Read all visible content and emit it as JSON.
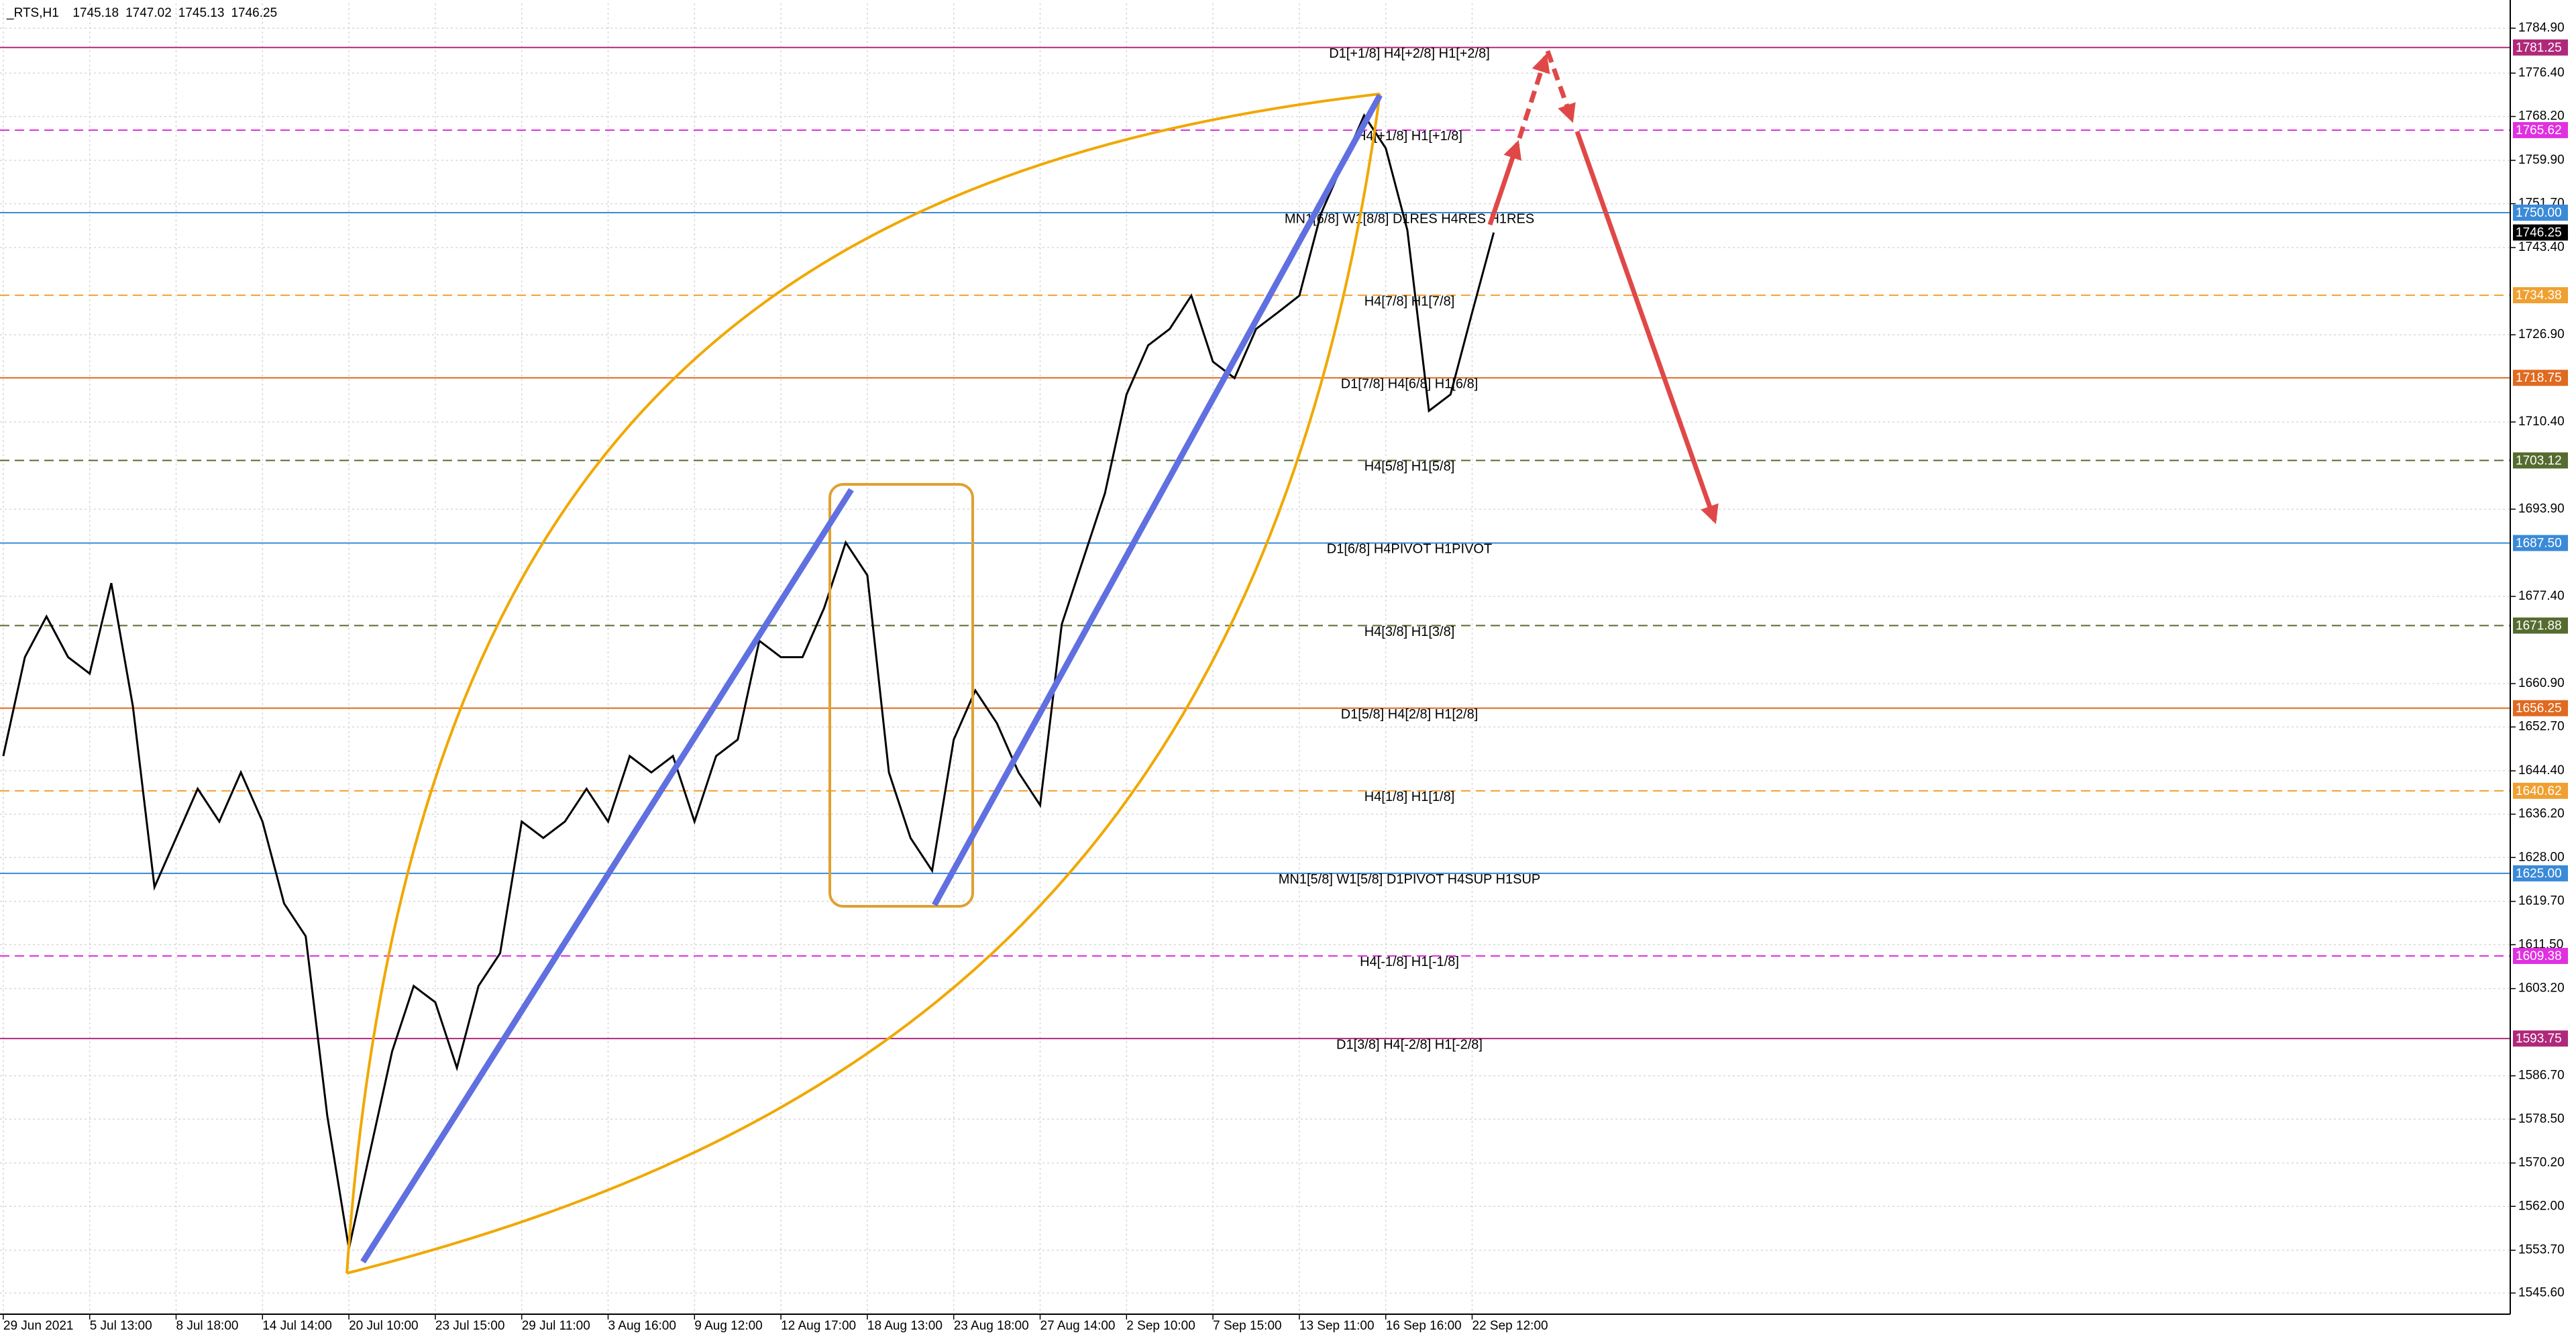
{
  "chart_data": {
    "type": "line",
    "title": "_RTS,H1",
    "ohlc": [
      1745.18,
      1747.02,
      1745.13,
      1746.25
    ],
    "color": "#000000",
    "grid": true,
    "ylim": [
      1541.6,
      1789.6
    ],
    "yticks": [
      {
        "value": 1784.9,
        "label": "1784.90"
      },
      {
        "value": 1776.4,
        "label": "1776.40"
      },
      {
        "value": 1768.2,
        "label": "1768.20"
      },
      {
        "value": 1759.9,
        "label": "1759.90"
      },
      {
        "value": 1751.7,
        "label": "1751.70"
      },
      {
        "value": 1743.4,
        "label": "1743.40"
      },
      {
        "value": 1726.9,
        "label": "1726.90"
      },
      {
        "value": 1710.4,
        "label": "1710.40"
      },
      {
        "value": 1693.9,
        "label": "1693.90"
      },
      {
        "value": 1677.4,
        "label": "1677.40"
      },
      {
        "value": 1660.9,
        "label": "1660.90"
      },
      {
        "value": 1652.7,
        "label": "1652.70"
      },
      {
        "value": 1644.4,
        "label": "1644.40"
      },
      {
        "value": 1636.2,
        "label": "1636.20"
      },
      {
        "value": 1628.0,
        "label": "1628.00"
      },
      {
        "value": 1619.7,
        "label": "1619.70"
      },
      {
        "value": 1611.5,
        "label": "1611.50"
      },
      {
        "value": 1603.2,
        "label": "1603.20"
      },
      {
        "value": 1586.7,
        "label": "1586.70"
      },
      {
        "value": 1578.5,
        "label": "1578.50"
      },
      {
        "value": 1570.2,
        "label": "1570.20"
      },
      {
        "value": 1562.0,
        "label": "1562.00"
      },
      {
        "value": 1553.7,
        "label": "1553.70"
      },
      {
        "value": 1545.6,
        "label": "1545.60"
      }
    ],
    "categories": [
      "29 Jun 2021",
      null,
      null,
      null,
      "5 Jul 13:00",
      null,
      null,
      null,
      "8 Jul 18:00",
      null,
      null,
      null,
      "14 Jul 14:00",
      null,
      null,
      null,
      "20 Jul 10:00",
      null,
      null,
      null,
      "23 Jul 15:00",
      null,
      null,
      null,
      "29 Jul 11:00",
      null,
      null,
      null,
      "3 Aug 16:00",
      null,
      null,
      null,
      "9 Aug 12:00",
      null,
      null,
      null,
      "12 Aug 17:00",
      null,
      null,
      null,
      "18 Aug 13:00",
      null,
      null,
      null,
      "23 Aug 18:00",
      null,
      null,
      null,
      "27 Aug 14:00",
      null,
      null,
      null,
      "2 Sep 10:00",
      null,
      null,
      null,
      "7 Sep 15:00",
      null,
      null,
      null,
      "13 Sep 11:00",
      null,
      null,
      null,
      "16 Sep 16:00",
      null,
      null,
      null,
      "22 Sep 12:00",
      null
    ],
    "values": [
      1647.2,
      1665.9,
      1673.6,
      1665.9,
      1662.8,
      1679.9,
      1656.6,
      1622.4,
      1631.7,
      1641.0,
      1634.8,
      1644.1,
      1634.8,
      1619.3,
      1613.1,
      1579.1,
      1554.0,
      1572.7,
      1591.3,
      1603.7,
      1600.6,
      1588.2,
      1603.7,
      1609.9,
      1634.8,
      1631.7,
      1634.8,
      1641.0,
      1634.8,
      1647.2,
      1644.1,
      1647.2,
      1634.8,
      1647.2,
      1650.3,
      1669.0,
      1665.9,
      1665.9,
      1675.2,
      1687.6,
      1681.4,
      1644.1,
      1631.7,
      1625.5,
      1650.3,
      1659.6,
      1653.4,
      1644.1,
      1637.9,
      1672.1,
      1684.5,
      1696.9,
      1715.6,
      1724.9,
      1728.0,
      1734.3,
      1721.8,
      1718.7,
      1728.0,
      1731.1,
      1734.3,
      1749.8,
      1759.1,
      1768.4,
      1762.2,
      1746.7,
      1712.5,
      1715.6,
      1731.1,
      1746.25
    ],
    "last_price": 1746.25,
    "levels": [
      {
        "price": 1781.25,
        "text": "D1[+1/8] H4[+2/8] H1[+2/8]",
        "color": "#b0287a",
        "dashed": false
      },
      {
        "price": 1765.62,
        "text": "H4[+1/8] H1[+1/8]",
        "color": "#e030e0",
        "dashed": true
      },
      {
        "price": 1750,
        "price_label": "1750.00",
        "text": "MN1[6/8] W1[8/8] D1RES H4RES H1RES",
        "color": "#3a8ad8",
        "dashed": false
      },
      {
        "price": 1734.38,
        "text": "H4[7/8] H1[7/8]",
        "color": "#f0a030",
        "dashed": true
      },
      {
        "price": 1718.75,
        "text": "D1[7/8] H4[6/8] H1[6/8]",
        "color": "#e06a20",
        "dashed": false
      },
      {
        "price": 1703.12,
        "text": "H4[5/8] H1[5/8]",
        "color": "#556b2f",
        "dashed": true
      },
      {
        "price": 1687.5,
        "price_label": "1687.50",
        "text": "D1[6/8] H4PIVOT H1PIVOT",
        "color": "#3a8ad8",
        "dashed": false
      },
      {
        "price": 1671.88,
        "text": "H4[3/8] H1[3/8]",
        "color": "#556b2f",
        "dashed": true
      },
      {
        "price": 1656.25,
        "text": "D1[5/8] H4[2/8] H1[2/8]",
        "color": "#e06a20",
        "dashed": false
      },
      {
        "price": 1640.62,
        "text": "H4[1/8] H1[1/8]",
        "color": "#f0a030",
        "dashed": true
      },
      {
        "price": 1625,
        "price_label": "1625.00",
        "text": "MN1[5/8] W1[5/8] D1PIVOT H4SUP H1SUP",
        "color": "#3a8ad8",
        "dashed": false
      },
      {
        "price": 1609.38,
        "text": "H4[-1/8] H1[-1/8]",
        "color": "#e030e0",
        "dashed": true
      },
      {
        "price": 1593.75,
        "text": "D1[3/8] H4[-2/8] H1[-2/8]",
        "color": "#b0287a",
        "dashed": false
      }
    ]
  }
}
